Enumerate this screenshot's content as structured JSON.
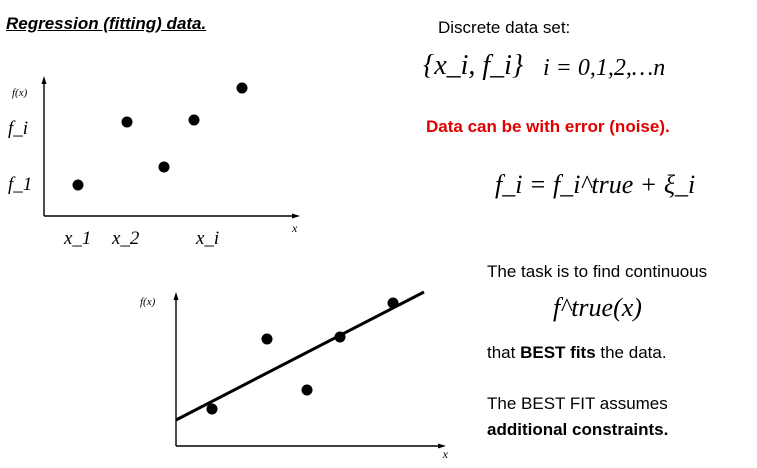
{
  "heading": "Regression (fitting) data.",
  "right_panel": {
    "discrete_label": "Discrete data set:",
    "set_notation": "{x_i, f_i}",
    "index_range": "i = 0,1,2,…n",
    "noise_note": "Data can be with error (noise).",
    "noise_equation": "f_i = f_i^true + ξ_i",
    "task_text": "The task is to find continuous",
    "task_function": "f^true(x)",
    "fits_prefix": "that ",
    "fits_bold": "BEST fits",
    "fits_suffix": " the data.",
    "best_fit_line1": "The BEST FIT assumes",
    "best_fit_line2": "additional constraints."
  },
  "plot_top": {
    "y_axis_label": "f(x)",
    "x_axis_label": "x",
    "y_tick_fi": "f_i",
    "y_tick_f1": "f_1",
    "x_tick_x1": "x_1",
    "x_tick_x2": "x_2",
    "x_tick_xi": "x_i"
  },
  "plot_bottom": {
    "y_axis_label": "f(x)",
    "x_axis_label": "x"
  },
  "colors": {
    "noise_note": "#e00000",
    "ink": "#000000"
  }
}
